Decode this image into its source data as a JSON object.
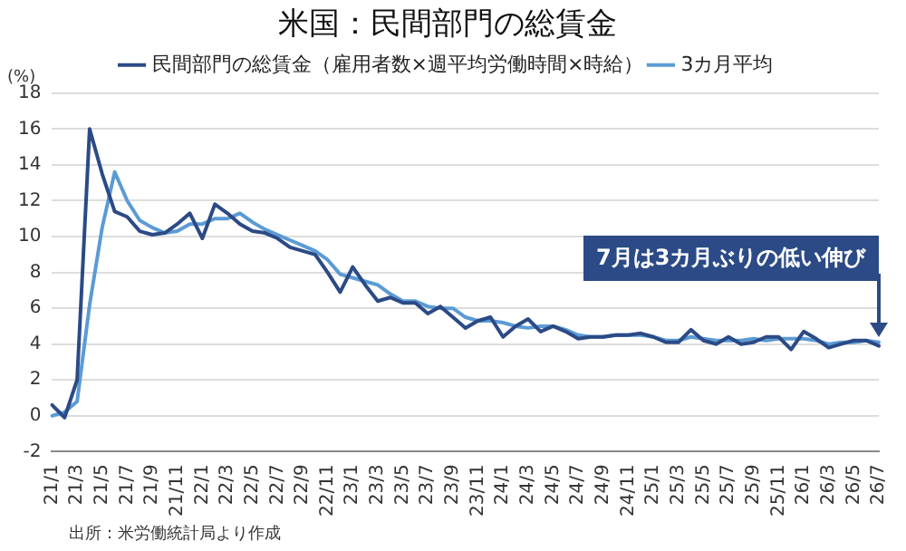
{
  "chart_data": {
    "type": "line",
    "title": "米国：民間部門の総賃金",
    "ylabel": "(%)",
    "categories": [
      "21/1",
      null,
      "21/3",
      null,
      "21/5",
      null,
      "21/7",
      null,
      "21/9",
      null,
      "21/11",
      null,
      "22/1",
      null,
      "22/3",
      null,
      "22/5",
      null,
      "22/7",
      null,
      "22/9",
      null,
      "22/11",
      null,
      "23/1",
      null,
      "23/3",
      null,
      "23/5",
      null,
      "23/7",
      null,
      "23/9",
      null,
      "23/11",
      null,
      "24/1",
      null,
      "24/3",
      null,
      "24/5",
      null,
      "24/7",
      null,
      "24/9",
      null,
      "24/11",
      null,
      "25/1",
      null,
      "25/3",
      null,
      "25/5",
      null,
      "25/7",
      null,
      "25/9",
      null,
      "25/11",
      null,
      "26/1",
      null,
      "26/3",
      null,
      "26/5",
      null,
      "26/7"
    ],
    "series": [
      {
        "name": "民間部門の総賃金（雇用者数×週平均労働時間×時給）",
        "color": "#2b4a86",
        "values": [
          0.6,
          -0.1,
          2.0,
          16.0,
          13.5,
          11.4,
          11.1,
          10.3,
          10.1,
          10.2,
          10.7,
          11.3,
          9.9,
          11.8,
          11.3,
          10.7,
          10.3,
          10.2,
          9.9,
          9.4,
          9.2,
          9.0,
          8.0,
          6.9,
          8.3,
          7.3,
          6.4,
          6.6,
          6.3,
          6.3,
          5.7,
          6.1,
          5.5,
          4.9,
          5.3,
          5.5,
          4.4,
          5.0,
          5.4,
          4.7,
          5.0,
          4.7,
          4.3,
          4.4,
          4.4,
          4.5,
          4.5,
          4.6,
          4.4,
          4.1,
          4.1,
          4.8,
          4.2,
          4.0,
          4.4,
          4.0,
          4.1,
          4.4,
          4.4,
          3.7,
          4.7,
          4.3,
          3.8,
          4.0,
          4.2,
          4.2,
          3.9
        ]
      },
      {
        "name": "3カ月平均",
        "color": "#5b9bd5",
        "values": [
          0.0,
          0.2,
          0.8,
          6.2,
          10.5,
          13.6,
          12.0,
          10.9,
          10.5,
          10.2,
          10.3,
          10.7,
          10.7,
          11.0,
          11.0,
          11.3,
          10.8,
          10.4,
          10.1,
          9.8,
          9.5,
          9.2,
          8.7,
          7.9,
          7.7,
          7.5,
          7.3,
          6.8,
          6.4,
          6.4,
          6.1,
          6.0,
          6.0,
          5.5,
          5.3,
          5.3,
          5.2,
          5.0,
          4.9,
          5.0,
          5.0,
          4.8,
          4.5,
          4.4,
          4.4,
          4.5,
          4.5,
          4.5,
          4.4,
          4.2,
          4.2,
          4.4,
          4.3,
          4.2,
          4.2,
          4.2,
          4.3,
          4.2,
          4.3,
          4.3,
          4.3,
          4.2,
          4.0,
          4.1,
          4.1,
          4.2,
          4.1
        ]
      }
    ],
    "ylim": [
      -2,
      18
    ],
    "yticks": [
      -2,
      0,
      2,
      4,
      6,
      8,
      10,
      12,
      14,
      16,
      18
    ],
    "grid": "y",
    "legend": "top",
    "marker": "none",
    "line_style": "solid",
    "annotations": [
      "7月は3カ月ぶりの低い伸び",
      "出所：米労働統計局より作成"
    ]
  }
}
